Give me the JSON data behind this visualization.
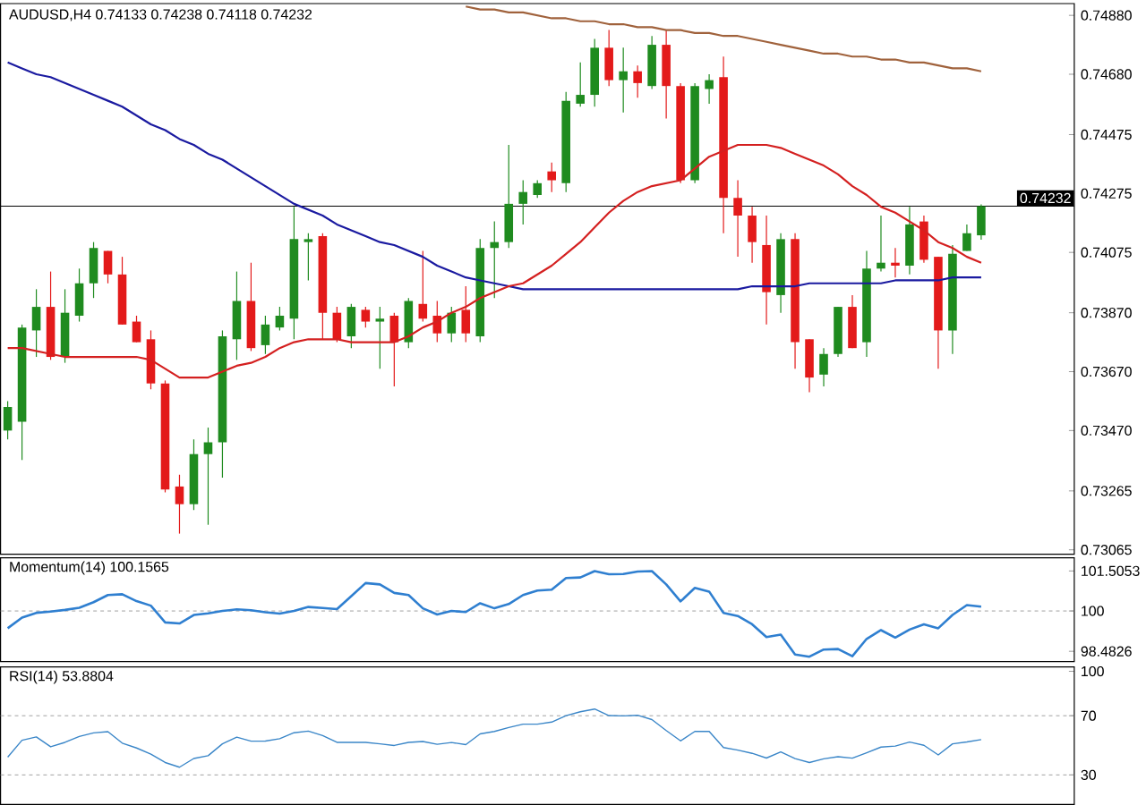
{
  "chart_data": [
    {
      "type": "candlestick",
      "title": "AUDUSD,H4 0.74133 0.74238 0.74118 0.74232",
      "categories": [
        null,
        null,
        null,
        null,
        null,
        null,
        null,
        null,
        null,
        null,
        null,
        null,
        null,
        null,
        null,
        null,
        null,
        null,
        null,
        null,
        null,
        null,
        null,
        null,
        null,
        null,
        null,
        null,
        null,
        null,
        null,
        null,
        null,
        null,
        null,
        null,
        null,
        null,
        null,
        null,
        null,
        null,
        null,
        null,
        null,
        null,
        null,
        null,
        null,
        null,
        null,
        null,
        null,
        null,
        null,
        null,
        null,
        null,
        null,
        null,
        null,
        null,
        null,
        null,
        null,
        null,
        null,
        null,
        null
      ],
      "ohlc": [
        [
          0.7347,
          0.7357,
          0.7344,
          0.7355
        ],
        [
          0.735,
          0.7383,
          0.7337,
          0.7382
        ],
        [
          0.7381,
          0.7395,
          0.7372,
          0.7389
        ],
        [
          0.7389,
          0.7401,
          0.7371,
          0.7372
        ],
        [
          0.7372,
          0.7395,
          0.737,
          0.7387
        ],
        [
          0.7386,
          0.7402,
          0.7384,
          0.7397
        ],
        [
          0.7397,
          0.7411,
          0.7392,
          0.7409
        ],
        [
          0.7408,
          0.7408,
          0.7397,
          0.74
        ],
        [
          0.74,
          0.7406,
          0.7383,
          0.7383
        ],
        [
          0.7384,
          0.7386,
          0.7377,
          0.7377
        ],
        [
          0.7378,
          0.7381,
          0.7361,
          0.7363
        ],
        [
          0.7363,
          0.7364,
          0.7326,
          0.7327
        ],
        [
          0.7328,
          0.7332,
          0.7312,
          0.7322
        ],
        [
          0.7322,
          0.7344,
          0.732,
          0.7339
        ],
        [
          0.7339,
          0.7348,
          0.7315,
          0.7343
        ],
        [
          0.7343,
          0.7381,
          0.7331,
          0.7379
        ],
        [
          0.7378,
          0.7401,
          0.7371,
          0.7391
        ],
        [
          0.7391,
          0.7404,
          0.7374,
          0.7375
        ],
        [
          0.7376,
          0.7386,
          0.7373,
          0.7383
        ],
        [
          0.7382,
          0.7389,
          0.7381,
          0.7386
        ],
        [
          0.7385,
          0.7423,
          0.7378,
          0.7412
        ],
        [
          0.7411,
          0.7414,
          0.7398,
          0.7412
        ],
        [
          0.7413,
          0.7414,
          0.7378,
          0.7387
        ],
        [
          0.7387,
          0.7389,
          0.7377,
          0.7378
        ],
        [
          0.7379,
          0.739,
          0.7375,
          0.7389
        ],
        [
          0.7388,
          0.7389,
          0.7382,
          0.7384
        ],
        [
          0.7384,
          0.7389,
          0.7368,
          0.7385
        ],
        [
          0.7386,
          0.7387,
          0.7362,
          0.7377
        ],
        [
          0.7377,
          0.7392,
          0.7375,
          0.7391
        ],
        [
          0.739,
          0.7408,
          0.7384,
          0.7385
        ],
        [
          0.7386,
          0.7391,
          0.7377,
          0.738
        ],
        [
          0.738,
          0.7389,
          0.7377,
          0.7387
        ],
        [
          0.7388,
          0.7396,
          0.7377,
          0.738
        ],
        [
          0.7379,
          0.7412,
          0.7377,
          0.7409
        ],
        [
          0.7409,
          0.7418,
          0.7392,
          0.7411
        ],
        [
          0.7411,
          0.7444,
          0.7409,
          0.7424
        ],
        [
          0.7424,
          0.7432,
          0.7417,
          0.7428
        ],
        [
          0.7427,
          0.7432,
          0.7426,
          0.7431
        ],
        [
          0.7435,
          0.7438,
          0.7428,
          0.7432
        ],
        [
          0.7431,
          0.7462,
          0.7428,
          0.7459
        ],
        [
          0.7458,
          0.7472,
          0.7457,
          0.7461
        ],
        [
          0.7461,
          0.748,
          0.7457,
          0.7477
        ],
        [
          0.7477,
          0.7483,
          0.7464,
          0.7466
        ],
        [
          0.7466,
          0.7477,
          0.7455,
          0.7469
        ],
        [
          0.7469,
          0.7471,
          0.746,
          0.7465
        ],
        [
          0.7464,
          0.7481,
          0.7463,
          0.7478
        ],
        [
          0.7478,
          0.7483,
          0.7453,
          0.7464
        ],
        [
          0.7464,
          0.7465,
          0.7431,
          0.7432
        ],
        [
          0.7432,
          0.7465,
          0.7431,
          0.7464
        ],
        [
          0.7463,
          0.7468,
          0.7458,
          0.7466
        ],
        [
          0.7467,
          0.7474,
          0.7414,
          0.7426
        ],
        [
          0.7426,
          0.7432,
          0.7406,
          0.742
        ],
        [
          0.742,
          0.7423,
          0.7404,
          0.7411
        ],
        [
          0.741,
          0.742,
          0.7383,
          0.7394
        ],
        [
          0.7393,
          0.7414,
          0.7387,
          0.7412
        ],
        [
          0.7412,
          0.7414,
          0.7368,
          0.7377
        ],
        [
          0.7378,
          0.7378,
          0.736,
          0.7365
        ],
        [
          0.7366,
          0.7375,
          0.7362,
          0.7373
        ],
        [
          0.7373,
          0.7389,
          0.7372,
          0.7389
        ],
        [
          0.7389,
          0.7393,
          0.7375,
          0.7375
        ],
        [
          0.7377,
          0.7408,
          0.7372,
          0.7402
        ],
        [
          0.7402,
          0.742,
          0.7401,
          0.7404
        ],
        [
          0.7404,
          0.7409,
          0.7399,
          0.7403
        ],
        [
          0.7403,
          0.7423,
          0.74,
          0.7417
        ],
        [
          0.7418,
          0.742,
          0.7404,
          0.7405
        ],
        [
          0.7406,
          0.7406,
          0.7368,
          0.7381
        ],
        [
          0.7381,
          0.741,
          0.7373,
          0.7407
        ],
        [
          0.7408,
          0.7417,
          0.7408,
          0.7414
        ],
        [
          0.74133,
          0.74238,
          0.74118,
          0.74232
        ]
      ],
      "colors": [
        "#1f8b1f",
        "#1f8b1f",
        "#1f8b1f",
        "#e31a1a",
        "#1f8b1f",
        "#1f8b1f",
        "#1f8b1f",
        "#e31a1a",
        "#e31a1a",
        "#e31a1a",
        "#e31a1a",
        "#e31a1a",
        "#e31a1a",
        "#1f8b1f",
        "#1f8b1f",
        "#1f8b1f",
        "#1f8b1f",
        "#e31a1a",
        "#1f8b1f",
        "#1f8b1f",
        "#1f8b1f",
        "#1f8b1f",
        "#e31a1a",
        "#e31a1a",
        "#1f8b1f",
        "#e31a1a",
        "#1f8b1f",
        "#e31a1a",
        "#1f8b1f",
        "#e31a1a",
        "#e31a1a",
        "#1f8b1f",
        "#e31a1a",
        "#1f8b1f",
        "#1f8b1f",
        "#1f8b1f",
        "#1f8b1f",
        "#1f8b1f",
        "#e31a1a",
        "#1f8b1f",
        "#1f8b1f",
        "#1f8b1f",
        "#e31a1a",
        "#1f8b1f",
        "#e31a1a",
        "#1f8b1f",
        "#e31a1a",
        "#e31a1a",
        "#1f8b1f",
        "#1f8b1f",
        "#e31a1a",
        "#e31a1a",
        "#e31a1a",
        "#e31a1a",
        "#1f8b1f",
        "#e31a1a",
        "#e31a1a",
        "#1f8b1f",
        "#1f8b1f",
        "#e31a1a",
        "#1f8b1f",
        "#1f8b1f",
        "#e31a1a",
        "#1f8b1f",
        "#e31a1a",
        "#e31a1a",
        "#1f8b1f",
        "#1f8b1f",
        "#1f8b1f"
      ],
      "series": [
        {
          "type": "line",
          "color": "#1a1aa0",
          "values": [
            0.7472,
            0.747,
            0.7468,
            0.7467,
            0.7465,
            0.7463,
            0.7461,
            0.7459,
            0.7457,
            0.7454,
            0.7451,
            0.7449,
            0.7446,
            0.7444,
            0.7441,
            0.7439,
            0.7436,
            0.7433,
            0.743,
            0.7427,
            0.7424,
            0.7422,
            0.742,
            0.7417,
            0.7415,
            0.7413,
            0.7411,
            0.741,
            0.7408,
            0.7406,
            0.7403,
            0.7401,
            0.7399,
            0.7398,
            0.7397,
            0.7396,
            0.7395,
            0.7395,
            0.7395,
            0.7395,
            0.7395,
            0.7395,
            0.7395,
            0.7395,
            0.7395,
            0.7395,
            0.7395,
            0.7395,
            0.7395,
            0.7395,
            0.7395,
            0.7395,
            0.7396,
            0.7396,
            0.7396,
            0.7396,
            0.7397,
            0.7397,
            0.7397,
            0.7397,
            0.7397,
            0.7397,
            0.7398,
            0.7398,
            0.7398,
            0.7398,
            0.7399,
            0.7399,
            0.7399
          ]
        },
        {
          "type": "line",
          "color": "#d42020",
          "values": [
            0.7375,
            0.7375,
            0.7374,
            0.7373,
            0.7372,
            0.7372,
            0.7372,
            0.7372,
            0.7372,
            0.7372,
            0.7371,
            0.7368,
            0.7365,
            0.7365,
            0.7365,
            0.7367,
            0.7369,
            0.737,
            0.7372,
            0.7375,
            0.7377,
            0.7378,
            0.7378,
            0.7378,
            0.7377,
            0.7377,
            0.7377,
            0.7377,
            0.7379,
            0.7382,
            0.7384,
            0.7387,
            0.7389,
            0.7392,
            0.7394,
            0.7396,
            0.7397,
            0.74,
            0.7403,
            0.7407,
            0.7411,
            0.7416,
            0.7421,
            0.7425,
            0.7428,
            0.743,
            0.7431,
            0.7432,
            0.7436,
            0.744,
            0.7442,
            0.7444,
            0.7444,
            0.7444,
            0.7443,
            0.7441,
            0.7439,
            0.7437,
            0.7434,
            0.743,
            0.7427,
            0.7423,
            0.7421,
            0.7418,
            0.7415,
            0.7411,
            0.7409,
            0.7406,
            0.7404
          ]
        },
        {
          "type": "line",
          "color": "#a0623c",
          "values": [
            null,
            null,
            null,
            null,
            null,
            null,
            null,
            null,
            null,
            null,
            null,
            null,
            null,
            null,
            null,
            null,
            null,
            null,
            null,
            null,
            null,
            null,
            null,
            null,
            null,
            null,
            null,
            null,
            null,
            null,
            null,
            null,
            0.7491,
            0.749,
            0.749,
            0.7489,
            0.7489,
            0.7488,
            0.7487,
            0.7487,
            0.7486,
            0.7486,
            0.7485,
            0.7485,
            0.7484,
            0.7484,
            0.7483,
            0.7483,
            0.7482,
            0.7482,
            0.7481,
            0.7481,
            0.748,
            0.7479,
            0.7478,
            0.7477,
            0.7476,
            0.7475,
            0.7475,
            0.7474,
            0.7474,
            0.7473,
            0.7473,
            0.7472,
            0.7472,
            0.7471,
            0.747,
            0.747,
            0.7469
          ]
        }
      ],
      "ylim": [
        0.7305,
        0.7492
      ],
      "yticks": [
        {
          "value": 0.7488,
          "label": "0.74880"
        },
        {
          "value": 0.7468,
          "label": "0.74680"
        },
        {
          "value": 0.74475,
          "label": "0.74475"
        },
        {
          "value": 0.74275,
          "label": "0.74275"
        },
        {
          "value": 0.74075,
          "label": "0.74075"
        },
        {
          "value": 0.7387,
          "label": "0.73870"
        },
        {
          "value": 0.7367,
          "label": "0.73670"
        },
        {
          "value": 0.7347,
          "label": "0.73470"
        },
        {
          "value": 0.73265,
          "label": "0.73265"
        },
        {
          "value": 0.73065,
          "label": "0.73065"
        }
      ],
      "tick_labels": "y",
      "ref_lines": [
        {
          "axis": "y",
          "value": 0.74232,
          "label": "0.74232",
          "color": "#000000"
        }
      ]
    },
    {
      "type": "line",
      "title": "Momentum(14) 100.1565",
      "categories": [
        null,
        null,
        null,
        null,
        null,
        null,
        null,
        null,
        null,
        null,
        null,
        null,
        null,
        null,
        null,
        null,
        null,
        null,
        null,
        null,
        null,
        null,
        null,
        null,
        null,
        null,
        null,
        null,
        null,
        null,
        null,
        null,
        null,
        null,
        null,
        null,
        null,
        null,
        null,
        null,
        null,
        null,
        null,
        null,
        null,
        null,
        null,
        null,
        null,
        null,
        null,
        null,
        null,
        null,
        null,
        null,
        null,
        null,
        null,
        null,
        null,
        null,
        null,
        null,
        null,
        null,
        null,
        null,
        null
      ],
      "series": [
        {
          "color": "#2f7fd0",
          "values": [
            99.35,
            99.75,
            99.93,
            99.98,
            100.04,
            100.12,
            100.33,
            100.6,
            100.63,
            100.37,
            100.2,
            99.57,
            99.53,
            99.85,
            99.91,
            100.0,
            100.06,
            100.03,
            99.95,
            99.9,
            100.0,
            100.15,
            100.11,
            100.07,
            100.56,
            101.05,
            101.0,
            100.68,
            100.6,
            100.1,
            99.87,
            100.0,
            99.96,
            100.29,
            100.1,
            100.26,
            100.6,
            100.77,
            100.8,
            101.24,
            101.26,
            101.5,
            101.38,
            101.39,
            101.48,
            101.5,
            101.0,
            100.36,
            100.87,
            100.73,
            99.93,
            99.81,
            99.5,
            99.02,
            99.11,
            98.36,
            98.28,
            98.55,
            98.57,
            98.3,
            98.95,
            99.28,
            99.0,
            99.3,
            99.5,
            99.35,
            99.85,
            100.22,
            100.16
          ]
        }
      ],
      "ylim": [
        98.1,
        102.0
      ],
      "yticks": [
        101.5053,
        100,
        98.4826
      ],
      "tick_labels": "y",
      "ref_lines": [
        {
          "axis": "y",
          "value": 100,
          "color": "#a0a0a0",
          "line_style": "dashed"
        }
      ]
    },
    {
      "type": "line",
      "title": "RSI(14) 53.8804",
      "categories": [
        null,
        null,
        null,
        null,
        null,
        null,
        null,
        null,
        null,
        null,
        null,
        null,
        null,
        null,
        null,
        null,
        null,
        null,
        null,
        null,
        null,
        null,
        null,
        null,
        null,
        null,
        null,
        null,
        null,
        null,
        null,
        null,
        null,
        null,
        null,
        null,
        null,
        null,
        null,
        null,
        null,
        null,
        null,
        null,
        null,
        null,
        null,
        null,
        null,
        null,
        null,
        null,
        null,
        null,
        null,
        null,
        null,
        null,
        null,
        null,
        null,
        null,
        null,
        null,
        null,
        null,
        null,
        null,
        null
      ],
      "series": [
        {
          "color": "#3a86c8",
          "values": [
            42,
            53.4,
            55.7,
            49,
            52,
            56,
            58.4,
            59.2,
            51.5,
            48.2,
            44,
            38.4,
            35.2,
            41.1,
            43,
            51,
            55.5,
            52.8,
            52.9,
            54.5,
            58.5,
            59.6,
            56.6,
            52,
            52,
            52,
            51,
            49.9,
            52,
            52.6,
            50.7,
            51.9,
            50.5,
            57.7,
            59.4,
            62,
            64.3,
            64.3,
            65.7,
            70,
            72.7,
            74.5,
            70.1,
            69.9,
            70.3,
            67.4,
            60,
            53,
            59.4,
            59.4,
            48.5,
            46.8,
            44.6,
            41.4,
            45.5,
            41,
            38.4,
            40.9,
            42.3,
            41.3,
            45,
            48.8,
            49.5,
            52.2,
            50,
            43.5,
            51,
            52.3,
            53.88
          ]
        }
      ],
      "ylim": [
        10,
        103
      ],
      "yticks": [
        100,
        70,
        30
      ],
      "tick_labels": "y",
      "ref_lines": [
        {
          "axis": "y",
          "value": 70,
          "color": "#a0a0a0",
          "line_style": "dashed"
        },
        {
          "axis": "y",
          "value": 30,
          "color": "#a0a0a0",
          "line_style": "dashed"
        }
      ]
    }
  ]
}
